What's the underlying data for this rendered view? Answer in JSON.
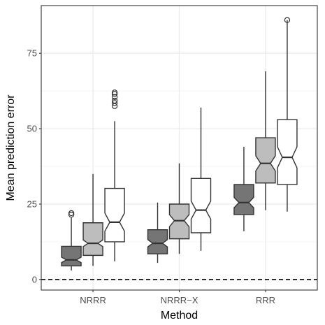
{
  "chart_data": {
    "type": "boxplot",
    "title": "",
    "xlabel": "Method",
    "ylabel": "Mean prediction error",
    "categories": [
      "NRRR",
      "NRRR−X",
      "RRR"
    ],
    "y_ticks": [
      0,
      25,
      50,
      75
    ],
    "y_tick_labels": [
      "0",
      "25",
      "50",
      "75"
    ],
    "ylim": [
      -3.5,
      90.8
    ],
    "grid": true,
    "legend": "none",
    "reference_line": {
      "y": 0,
      "style": "dashed"
    },
    "colors": [
      "#757575",
      "#bdbdbd",
      "#ffffff"
    ],
    "notched": true,
    "series": [
      {
        "category": "NRRR",
        "boxes": [
          {
            "whisker_low": 3.0,
            "q1": 4.5,
            "median": 6.5,
            "q3": 11.0,
            "whisker_high": 20.5,
            "notch_low": 5.6,
            "notch_high": 7.4,
            "outliers": [
              21.5,
              22.0
            ]
          },
          {
            "whisker_low": 4.5,
            "q1": 8.0,
            "median": 12.0,
            "q3": 18.8,
            "whisker_high": 35.0,
            "notch_low": 10.9,
            "notch_high": 13.1,
            "outliers": []
          },
          {
            "whisker_low": 6.0,
            "q1": 12.5,
            "median": 19.0,
            "q3": 30.2,
            "whisker_high": 52.5,
            "notch_low": 16.0,
            "notch_high": 22.0,
            "outliers": [
              57.5,
              58.5,
              59.3,
              60.5,
              61.5,
              62.0
            ]
          }
        ]
      },
      {
        "category": "NRRR−X",
        "boxes": [
          {
            "whisker_low": 5.5,
            "q1": 8.5,
            "median": 12.0,
            "q3": 16.5,
            "whisker_high": 25.5,
            "notch_low": 10.8,
            "notch_high": 13.2,
            "outliers": []
          },
          {
            "whisker_low": 8.5,
            "q1": 13.5,
            "median": 19.5,
            "q3": 25.0,
            "whisker_high": 38.5,
            "notch_low": 17.5,
            "notch_high": 21.5,
            "outliers": []
          },
          {
            "whisker_low": 9.5,
            "q1": 15.5,
            "median": 23.0,
            "q3": 33.5,
            "whisker_high": 57.0,
            "notch_low": 20.0,
            "notch_high": 26.0,
            "outliers": []
          }
        ]
      },
      {
        "category": "RRR",
        "boxes": [
          {
            "whisker_low": 16.0,
            "q1": 21.5,
            "median": 25.5,
            "q3": 31.5,
            "whisker_high": 44.0,
            "notch_low": 23.8,
            "notch_high": 27.2,
            "outliers": []
          },
          {
            "whisker_low": 23.0,
            "q1": 32.0,
            "median": 38.5,
            "q3": 47.0,
            "whisker_high": 69.0,
            "notch_low": 36.0,
            "notch_high": 41.0,
            "outliers": []
          },
          {
            "whisker_low": 22.5,
            "q1": 31.5,
            "median": 40.5,
            "q3": 53.0,
            "whisker_high": 86.0,
            "notch_low": 37.0,
            "notch_high": 44.0,
            "outliers": [
              86.0
            ]
          }
        ]
      }
    ]
  }
}
